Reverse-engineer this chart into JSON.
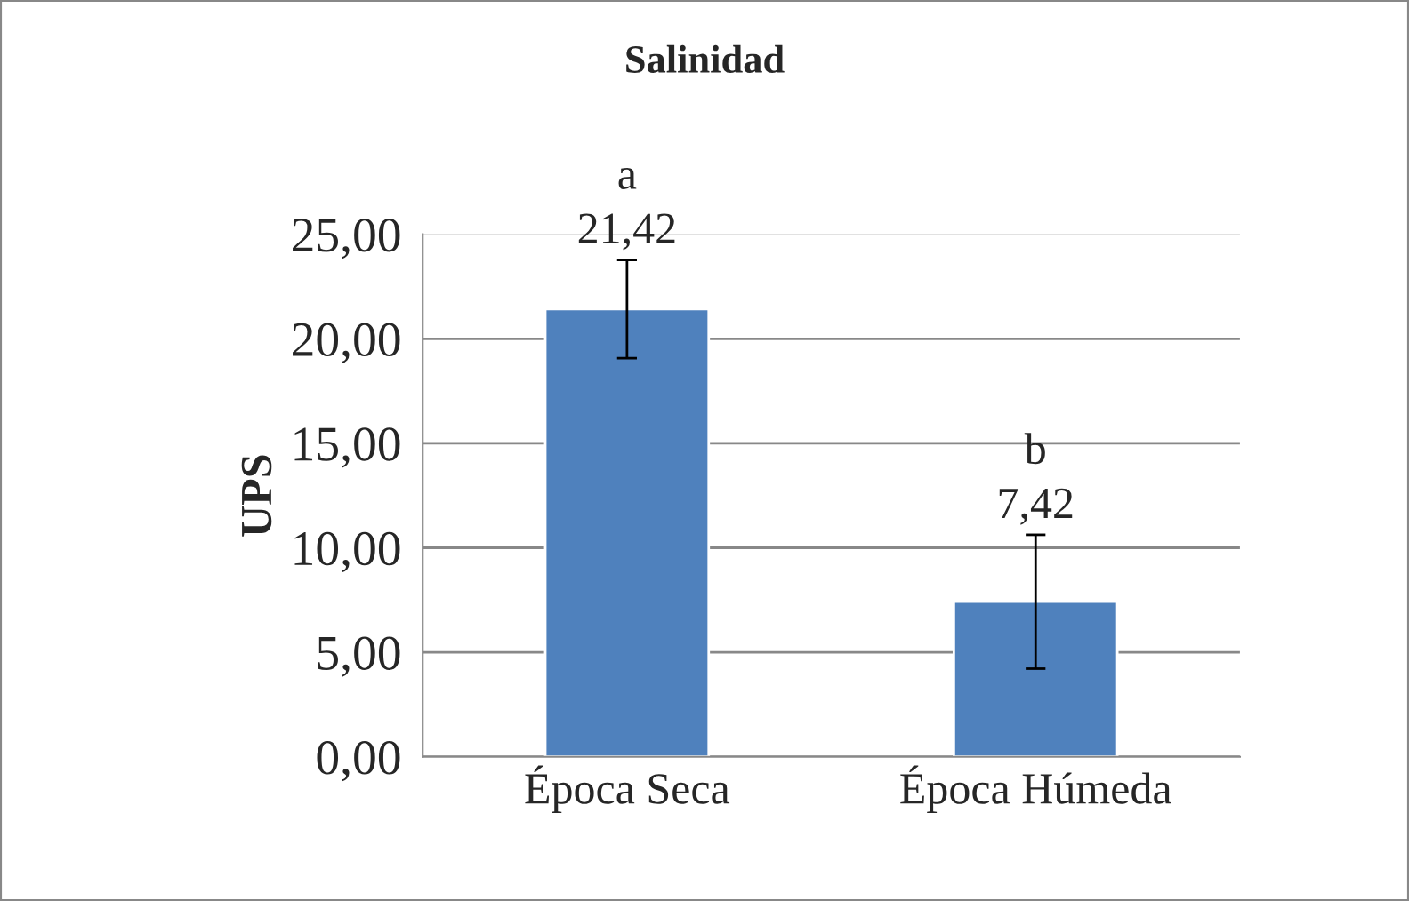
{
  "chart_data": {
    "type": "bar",
    "title": "Salinidad",
    "ylabel": "UPS",
    "categories": [
      "Época Seca",
      "Época Húmeda"
    ],
    "values": [
      21.42,
      7.42
    ],
    "color": "#4f81bd",
    "errors": [
      2.35,
      3.2
    ],
    "value_labels": [
      "21,42",
      "7,42"
    ],
    "annotations": [
      "a",
      "b"
    ],
    "ylim": [
      0,
      25
    ],
    "yticks": [
      {
        "value": 0,
        "label": "0,00"
      },
      {
        "value": 5,
        "label": "5,00"
      },
      {
        "value": 10,
        "label": "10,00"
      },
      {
        "value": 15,
        "label": "15,00"
      },
      {
        "value": 20,
        "label": "20,00"
      },
      {
        "value": 25,
        "label": "25,00"
      }
    ],
    "grid": "y"
  }
}
